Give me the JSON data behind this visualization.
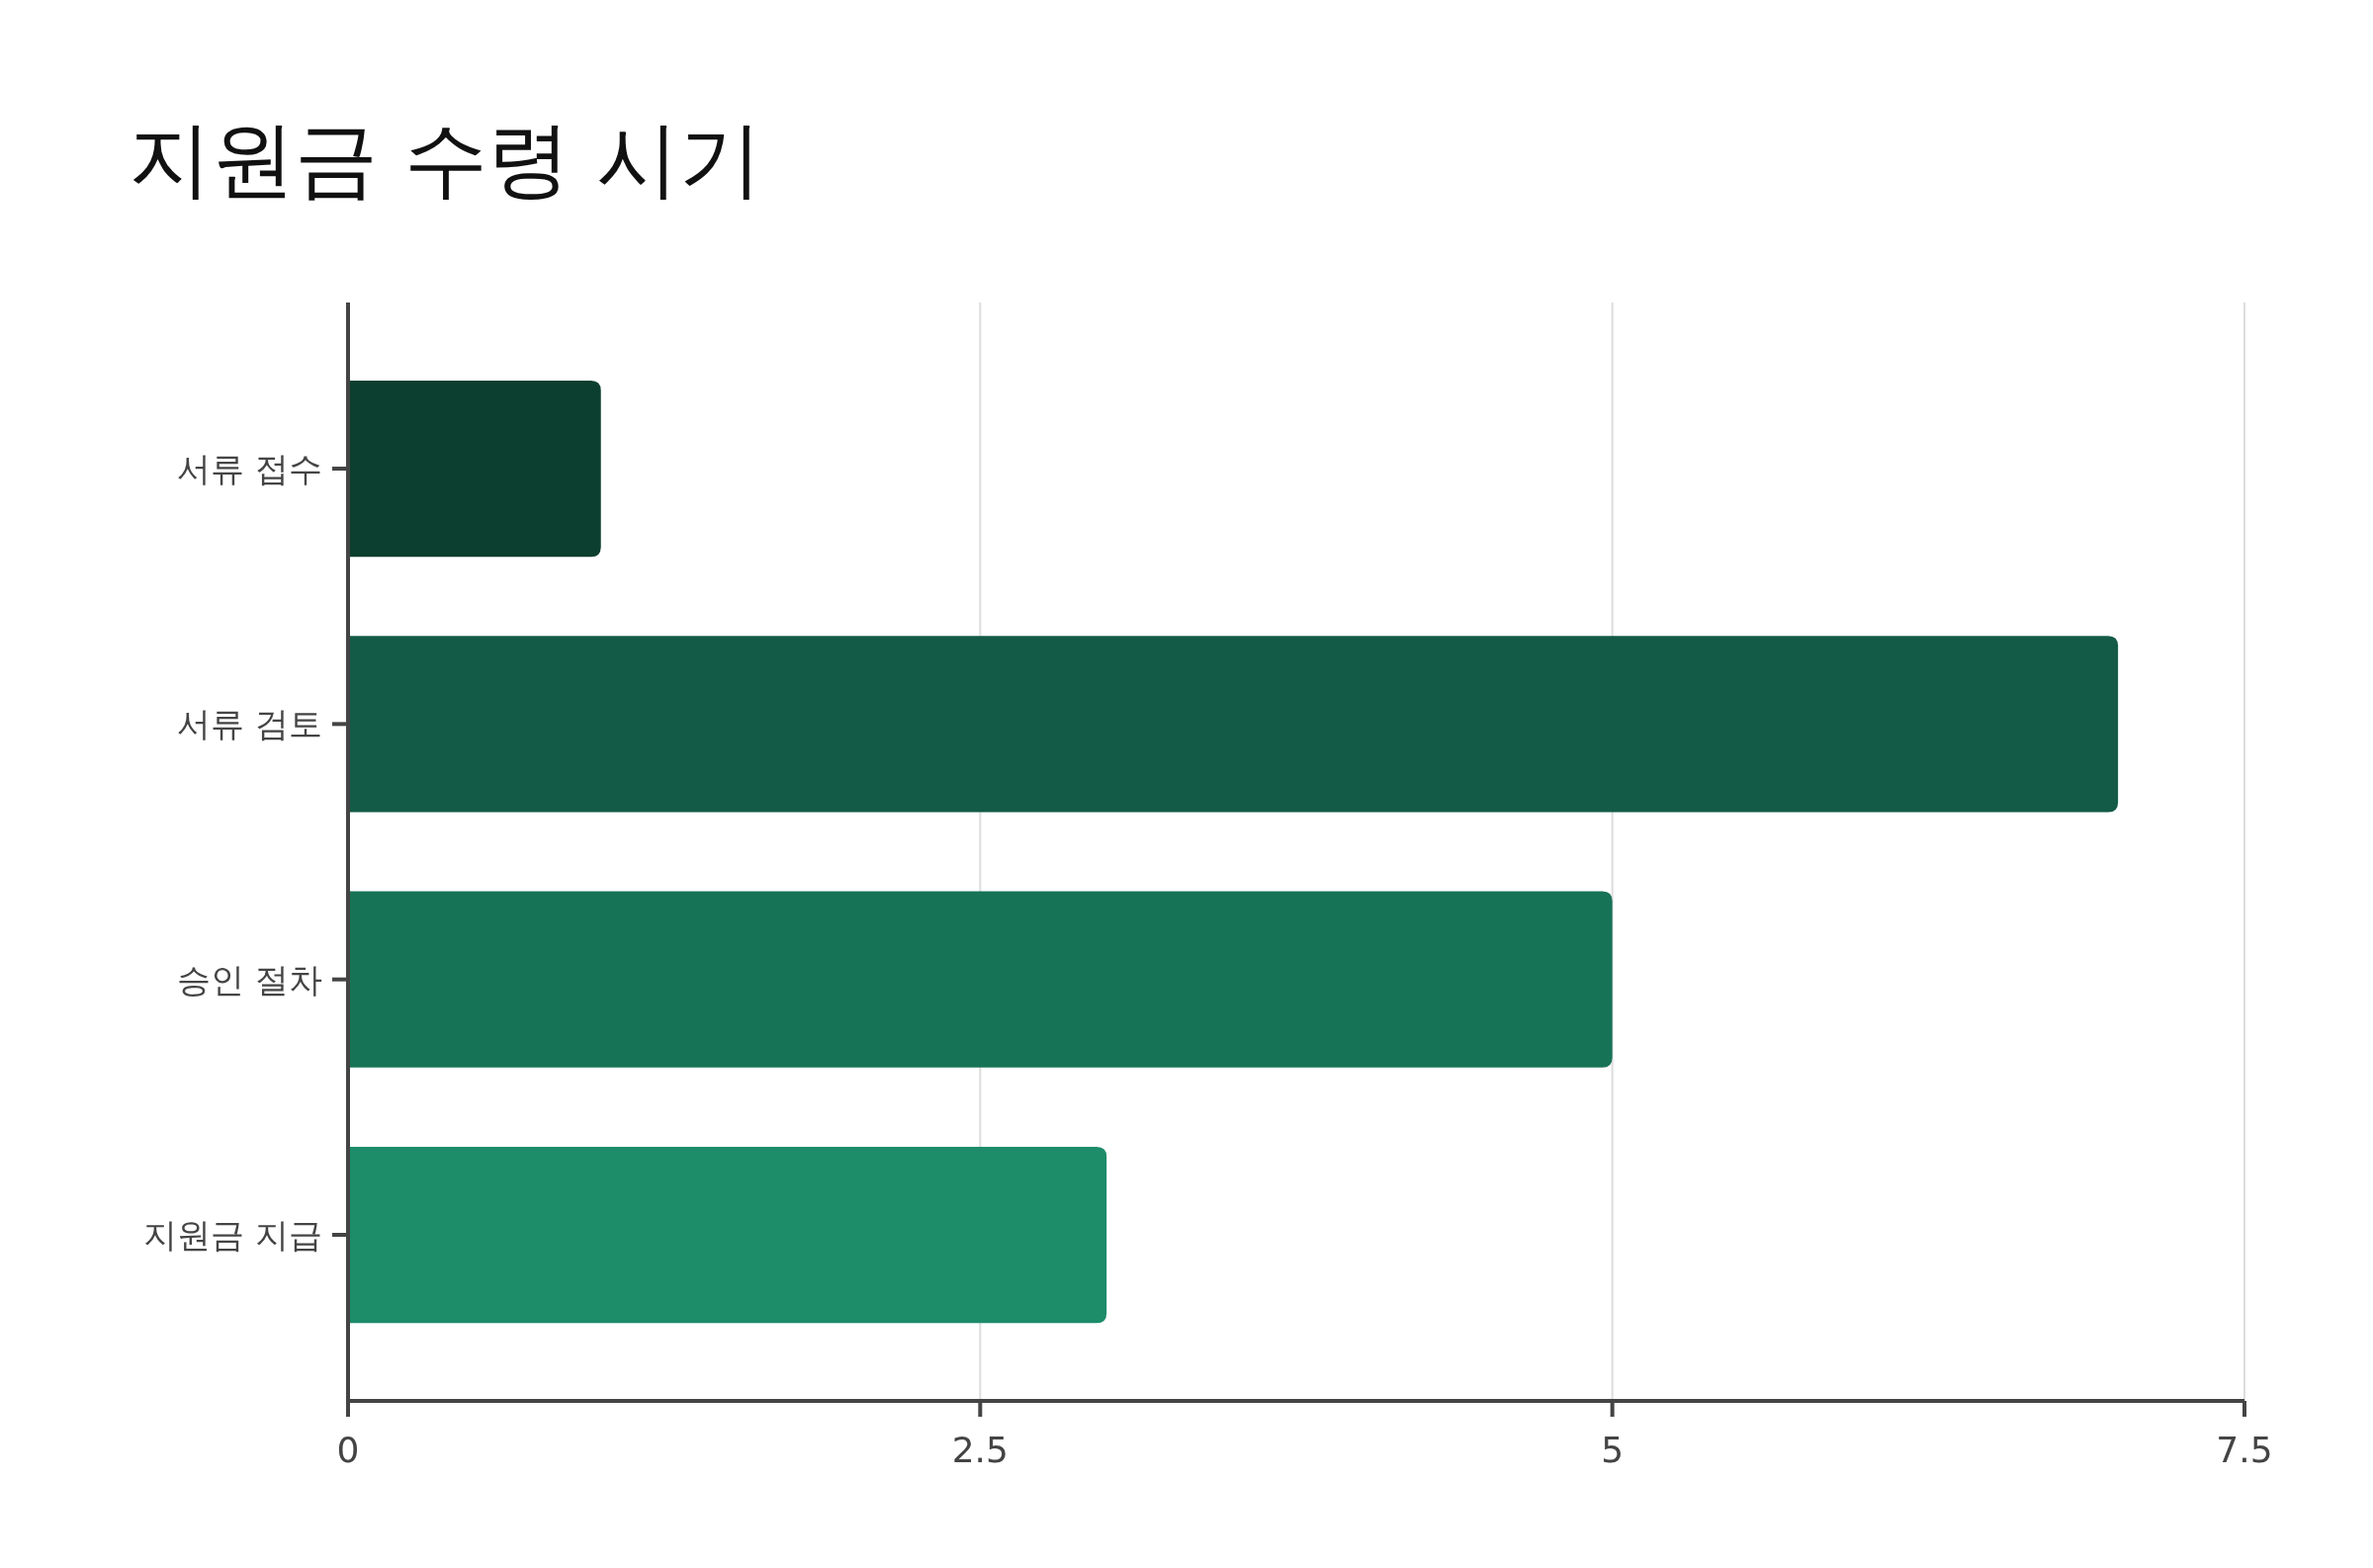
{
  "chart_data": {
    "type": "bar",
    "title": "지원금 수령 시기",
    "orientation": "horizontal",
    "categories": [
      "서류 접수",
      "서류 검토",
      "승인 절차",
      "지원금 지급"
    ],
    "values": [
      1,
      7,
      5,
      3
    ],
    "colors": [
      "#0c3f2f",
      "#135a47",
      "#177356",
      "#1c8c69"
    ],
    "xlim": [
      0,
      7.5
    ],
    "xticks": [
      0,
      2.5,
      5,
      7.5
    ],
    "grid": "x"
  }
}
